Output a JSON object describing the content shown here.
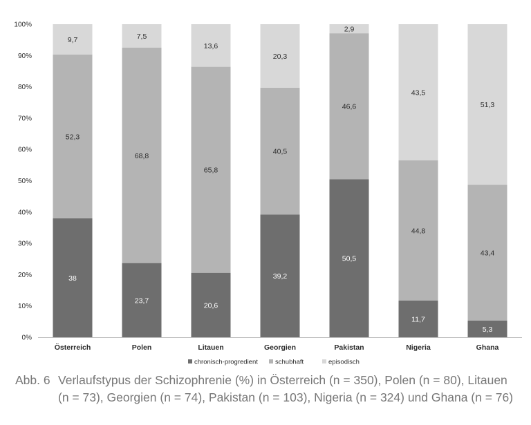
{
  "chart_data": {
    "type": "bar",
    "stacked": true,
    "percent": true,
    "categories": [
      "Österreich",
      "Polen",
      "Litauen",
      "Georgien",
      "Pakistan",
      "Nigeria",
      "Ghana"
    ],
    "series": [
      {
        "name": "chronisch-progredient",
        "color": "#6e6e6e",
        "label_color": "#ffffff",
        "values": [
          38,
          23.7,
          20.6,
          39.2,
          50.5,
          11.7,
          5.3
        ],
        "labels": [
          "38",
          "23,7",
          "20,6",
          "39,2",
          "50,5",
          "11,7",
          "5,3"
        ]
      },
      {
        "name": "schubhaft",
        "color": "#b4b4b4",
        "label_color": "#2b2b2b",
        "values": [
          52.3,
          68.8,
          65.8,
          40.5,
          46.6,
          44.8,
          43.4
        ],
        "labels": [
          "52,3",
          "68,8",
          "65,8",
          "40,5",
          "46,6",
          "44,8",
          "43,4"
        ]
      },
      {
        "name": "episodisch",
        "color": "#d8d8d8",
        "label_color": "#2b2b2b",
        "values": [
          9.7,
          7.5,
          13.6,
          20.3,
          2.9,
          43.5,
          51.3
        ],
        "labels": [
          "9,7",
          "7,5",
          "13,6",
          "20,3",
          "2,9",
          "43,5",
          "51,3"
        ]
      }
    ],
    "yticks": [
      "0%",
      "10%",
      "20%",
      "30%",
      "40%",
      "50%",
      "60%",
      "70%",
      "80%",
      "90%",
      "100%"
    ],
    "ylim": [
      0,
      100
    ],
    "legend_position": "bottom-center"
  },
  "caption": {
    "label": "Abb. 6",
    "text": "Verlaufstypus der Schizophrenie (%) in Österreich (n = 350), Polen (n = 80), Litauen (n = 73), Georgien (n = 74), Pakistan (n = 103), Nigeria (n = 324) und Ghana (n = 76)"
  }
}
